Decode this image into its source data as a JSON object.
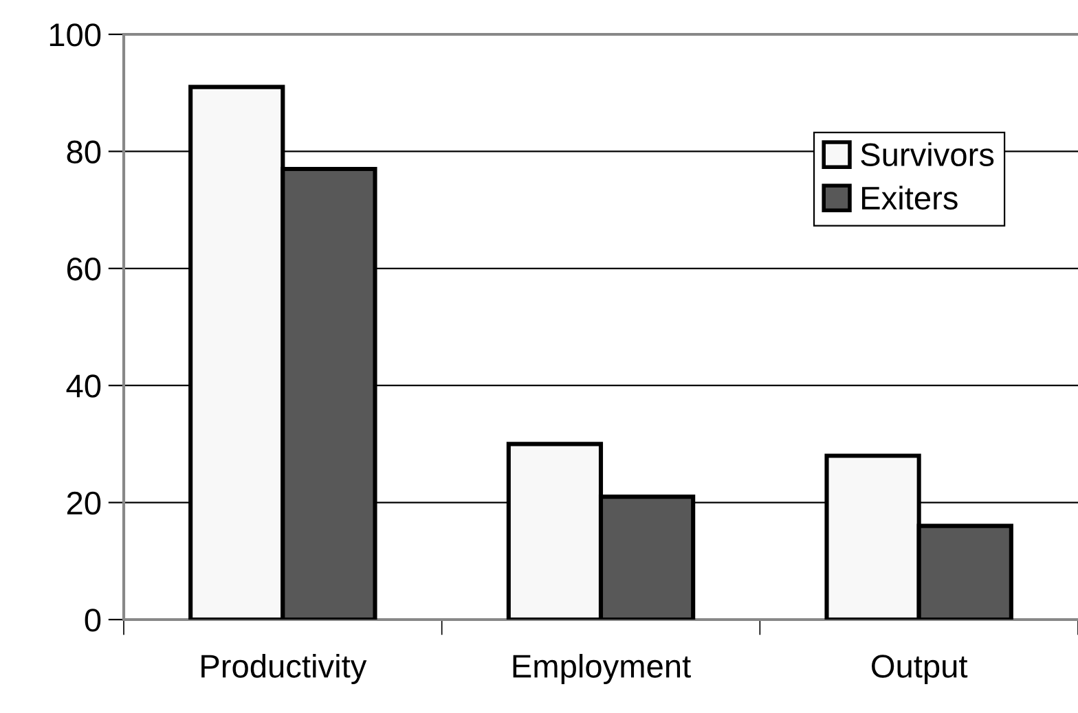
{
  "chart_data": {
    "type": "bar",
    "categories": [
      "Productivity",
      "Employment",
      "Output"
    ],
    "series": [
      {
        "name": "Survivors",
        "color": "#f8f8f8",
        "values": [
          91,
          30,
          28
        ]
      },
      {
        "name": "Exiters",
        "color": "#585858",
        "values": [
          77,
          21,
          16
        ]
      }
    ],
    "ylim": [
      0,
      100
    ],
    "yticks": [
      0,
      20,
      40,
      60,
      80,
      100
    ],
    "grid": "y",
    "legend": "top right"
  }
}
